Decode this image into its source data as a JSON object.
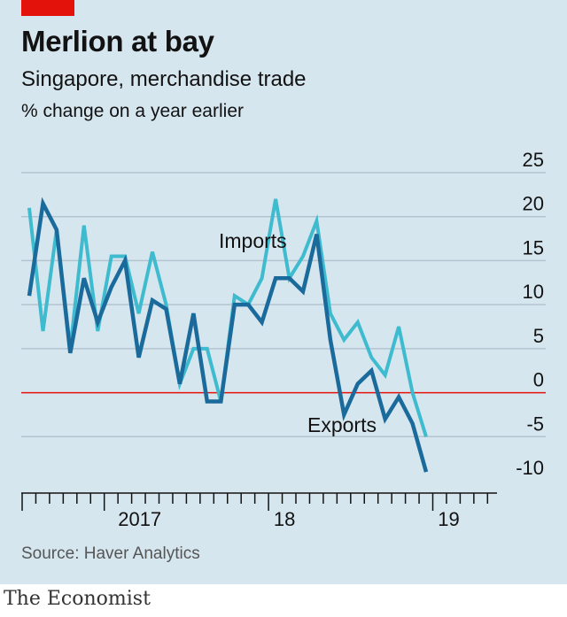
{
  "header": {
    "title": "Merlion at bay",
    "subtitle": "Singapore, merchandise trade",
    "unit": "% change on a year earlier"
  },
  "footer": {
    "source": "Source: Haver Analytics",
    "brand": "The Economist"
  },
  "colors": {
    "background": "#d6e6ef",
    "imports": "#3ebbce",
    "exports": "#1a6a9c",
    "zero_line": "#e3120b",
    "gridline": "#b3c4d0",
    "brand_tag": "#e3120b"
  },
  "chart_data": {
    "type": "line",
    "title": "Merlion at bay",
    "subtitle": "Singapore, merchandise trade",
    "ylabel": "% change on a year earlier",
    "ylim": [
      -10,
      25
    ],
    "yticks": [
      25,
      20,
      15,
      10,
      5,
      0,
      -5,
      -10
    ],
    "x": [
      "2016-07",
      "2016-08",
      "2016-09",
      "2016-10",
      "2016-11",
      "2016-12",
      "2017-01",
      "2017-02",
      "2017-03",
      "2017-04",
      "2017-05",
      "2017-06",
      "2017-07",
      "2017-08",
      "2017-09",
      "2017-10",
      "2017-11",
      "2017-12",
      "2018-01",
      "2018-02",
      "2018-03",
      "2018-04",
      "2018-05",
      "2018-06",
      "2018-07",
      "2018-08",
      "2018-09",
      "2018-10",
      "2018-11",
      "2018-12",
      "2019-01",
      "2019-02",
      "2019-03",
      "2019-04"
    ],
    "x_tick_labels": [
      {
        "label": "2017",
        "at": "2017-01"
      },
      {
        "label": "18",
        "at": "2018-01"
      },
      {
        "label": "19",
        "at": "2019-01"
      }
    ],
    "series": [
      {
        "name": "Imports",
        "values": [
          21,
          7,
          18.5,
          5,
          19,
          7,
          15.5,
          15.5,
          9,
          16,
          10,
          1,
          5,
          5,
          -1,
          11,
          10,
          13,
          22,
          13,
          15.5,
          19.5,
          9,
          6,
          8,
          4,
          2,
          7.5,
          0,
          -5,
          null,
          null,
          null,
          null
        ]
      },
      {
        "name": "Exports",
        "values": [
          11,
          21.5,
          18.5,
          4.5,
          13,
          8,
          12,
          15,
          4,
          10.5,
          9.5,
          1,
          9,
          -1,
          -1,
          10,
          10,
          8,
          13,
          13,
          11.5,
          18,
          6,
          -2.5,
          1,
          2.5,
          -3,
          -0.5,
          -3.5,
          -9,
          null,
          null,
          null,
          null
        ]
      }
    ],
    "annotations": [
      {
        "text": "Imports",
        "series": "Imports"
      },
      {
        "text": "Exports",
        "series": "Exports"
      }
    ],
    "grid": true,
    "legend": "inline labels"
  }
}
